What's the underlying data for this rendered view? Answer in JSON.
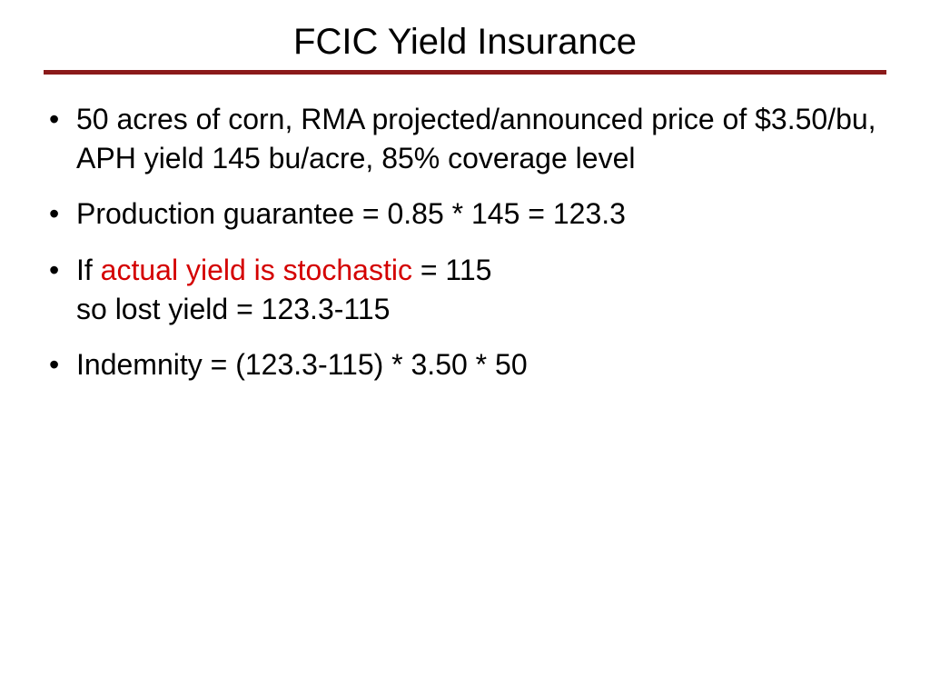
{
  "title": "FCIC Yield Insurance",
  "rule_color": "#8b1a1a",
  "highlight_color": "#d40000",
  "text_color": "#000000",
  "background_color": "#ffffff",
  "title_fontsize": 40,
  "body_fontsize": 32,
  "bullets": [
    {
      "segments": [
        {
          "text": "50 acres of corn, RMA projected/announced price of $3.50/bu, APH yield 145 bu/acre, 85% coverage level",
          "highlight": false
        }
      ]
    },
    {
      "segments": [
        {
          "text": "Production guarantee = 0.85 * 145 = 123.3",
          "highlight": false
        }
      ]
    },
    {
      "segments": [
        {
          "text": "If ",
          "highlight": false
        },
        {
          "text": "actual yield is stochastic",
          "highlight": true
        },
        {
          "text": " = 115",
          "highlight": false
        },
        {
          "text": "\n",
          "highlight": false,
          "break": true
        },
        {
          "text": "so lost yield = 123.3-115",
          "highlight": false
        }
      ]
    },
    {
      "segments": [
        {
          "text": "Indemnity = (123.3-115) * 3.50 * 50",
          "highlight": false
        }
      ]
    }
  ]
}
